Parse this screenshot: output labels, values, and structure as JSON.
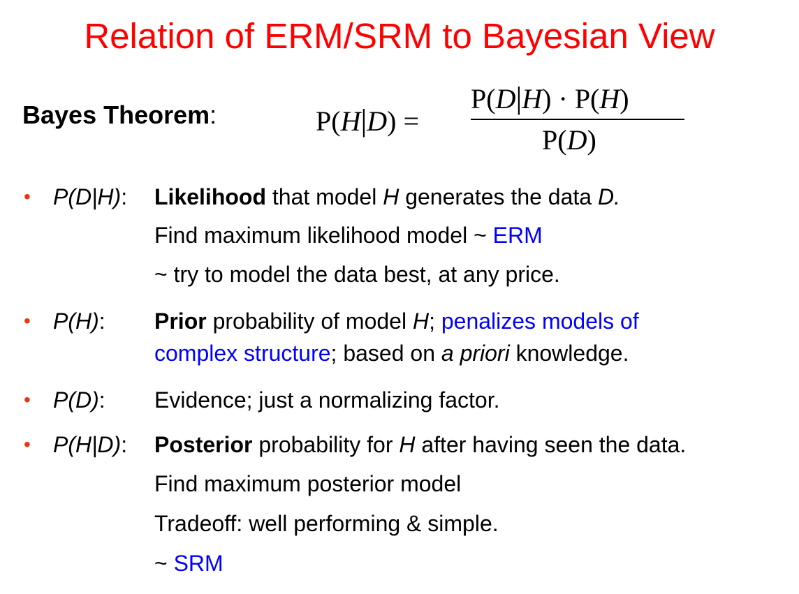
{
  "title": "Relation of ERM/SRM to Bayesian View",
  "colors": {
    "title": "#ff0000",
    "bullet": "#ee3311",
    "highlight": "#0000ff",
    "text": "#000000"
  },
  "bayes": {
    "label": "Bayes Theorem",
    "colon": ":",
    "formula": {
      "lhs_open": "P(",
      "lhs_h": "H",
      "lhs_bar": "|",
      "lhs_d": "D",
      "lhs_close": ") =",
      "num_p1_open": "P(",
      "num_d": "D",
      "num_bar": "|",
      "num_h": "H",
      "num_p1_close": ") · ",
      "num_p2_open": "P(",
      "num_h2": "H",
      "num_p2_close": ")",
      "den_open": "P(",
      "den_d": "D",
      "den_close": ")"
    }
  },
  "bullets": [
    {
      "symbol": "•",
      "term_text": "P(D|H)",
      "term_colon": ":",
      "line1": {
        "bold": "Likelihood",
        "text1": " that model ",
        "ital1": "H",
        "text2": " generates the data ",
        "ital2": "D."
      },
      "line2": {
        "text": "Find maximum likelihood model ~ ",
        "blue": "ERM"
      },
      "line3": {
        "text": "~ try to model the data best, at any price."
      }
    },
    {
      "symbol": "•",
      "term_text": "P(H)",
      "term_colon": ":",
      "line1": {
        "bold": "Prior",
        "text1": " probability of model ",
        "ital1": "H",
        "text2": "; ",
        "blue": "penalizes models of"
      },
      "line2": {
        "blue": "complex structure",
        "text1": "; based on ",
        "ital1": "a priori",
        "text2": " knowledge."
      }
    },
    {
      "symbol": "•",
      "term_text": "P(D)",
      "term_colon": ":",
      "line1": {
        "text": "Evidence; just a normalizing factor."
      }
    },
    {
      "symbol": "•",
      "term_text": "P(H|D)",
      "term_colon": ":",
      "line1": {
        "bold": "Posterior",
        "text1": " probability for ",
        "ital1": "H",
        "text2": " after having seen the data."
      },
      "line2": {
        "text": "Find maximum posterior model"
      },
      "line3": {
        "text": "Tradeoff: well performing & simple."
      },
      "line4": {
        "text": "~ ",
        "blue": "SRM"
      }
    }
  ]
}
